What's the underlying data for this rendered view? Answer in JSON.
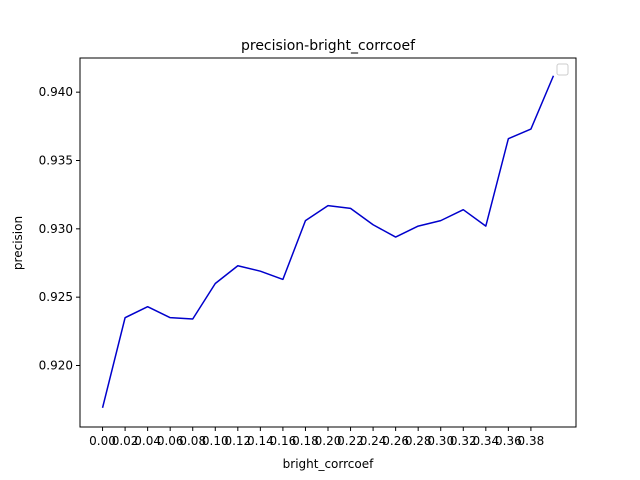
{
  "chart_data": {
    "type": "line",
    "title": "precision-bright_corrcoef",
    "xlabel": "bright_corrcoef",
    "ylabel": "precision",
    "x": [
      0.0,
      0.02,
      0.04,
      0.06,
      0.08,
      0.1,
      0.12,
      0.14,
      0.16,
      0.18,
      0.2,
      0.22,
      0.24,
      0.26,
      0.28,
      0.3,
      0.32,
      0.34,
      0.36,
      0.38,
      0.4
    ],
    "series": [
      {
        "color": "#0000cc",
        "values": [
          0.9169,
          0.9235,
          0.9243,
          0.9235,
          0.9234,
          0.926,
          0.9273,
          0.9269,
          0.9263,
          0.9306,
          0.9317,
          0.9315,
          0.9303,
          0.9294,
          0.9302,
          0.9306,
          0.9314,
          0.9302,
          0.9366,
          0.9373,
          0.9412
        ]
      }
    ],
    "xticks": [
      "0.00",
      "0.02",
      "0.04",
      "0.06",
      "0.08",
      "0.10",
      "0.12",
      "0.14",
      "0.16",
      "0.18",
      "0.20",
      "0.22",
      "0.24",
      "0.26",
      "0.28",
      "0.30",
      "0.32",
      "0.34",
      "0.36",
      "0.38"
    ],
    "yticks": [
      "0.920",
      "0.925",
      "0.930",
      "0.935",
      "0.940"
    ],
    "xlim": [
      -0.02,
      0.42
    ],
    "ylim": [
      0.9155,
      0.9425
    ],
    "grid": false,
    "legend": "top-right, empty"
  }
}
